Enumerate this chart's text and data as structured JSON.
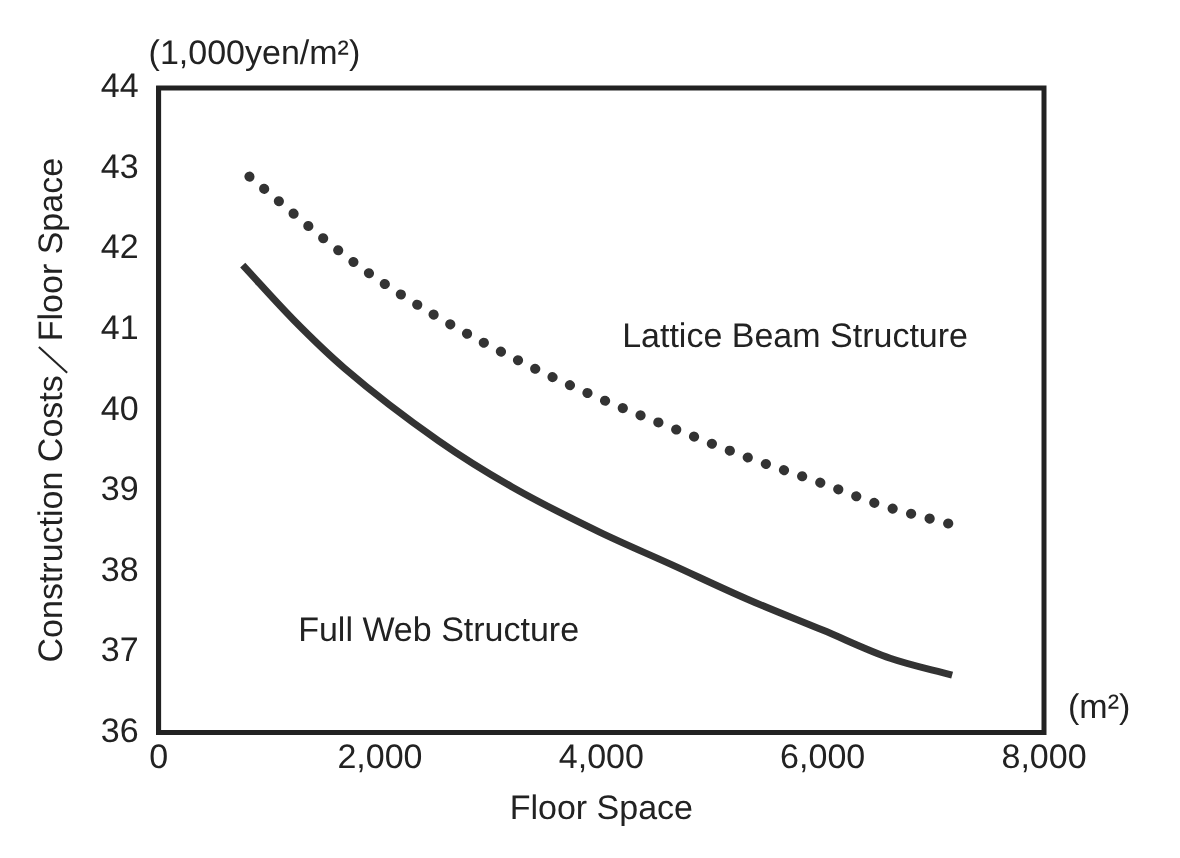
{
  "chart_data": {
    "type": "line",
    "xlabel": "Floor Space",
    "ylabel": "Construction Costs／Floor Space",
    "annotations": [
      "(1,000yen/m²)",
      "(m²)"
    ],
    "xlim": [
      0,
      8000
    ],
    "xticks": [
      {
        "value": 0,
        "label": "0"
      },
      {
        "value": 2000,
        "label": "2,000"
      },
      {
        "value": 4000,
        "label": "4,000"
      },
      {
        "value": 6000,
        "label": "6,000"
      },
      {
        "value": 8000,
        "label": "8,000"
      }
    ],
    "ylim": [
      36,
      44
    ],
    "yticks": [
      36,
      37,
      38,
      39,
      40,
      41,
      42,
      43,
      44
    ],
    "grid": false,
    "legend": false,
    "series": [
      {
        "name": "Lattice Beam Structure",
        "color": "#333333",
        "line_style": "dotted",
        "x": [
          820,
          1800,
          2530,
          3320,
          3980,
          4640,
          5310,
          6000,
          6510,
          7170
        ],
        "values": [
          42.9,
          41.8,
          41.15,
          40.57,
          40.15,
          39.78,
          39.42,
          39.09,
          38.83,
          38.58
        ]
      },
      {
        "name": "Full Web Structure",
        "color": "#333333",
        "line_style": "solid",
        "x": [
          760,
          1220,
          1680,
          2530,
          3190,
          3980,
          4640,
          5310,
          6000,
          6610,
          7170
        ],
        "values": [
          41.8,
          41.12,
          40.52,
          39.62,
          39.05,
          38.49,
          38.08,
          37.66,
          37.27,
          36.92,
          36.71
        ]
      }
    ]
  }
}
